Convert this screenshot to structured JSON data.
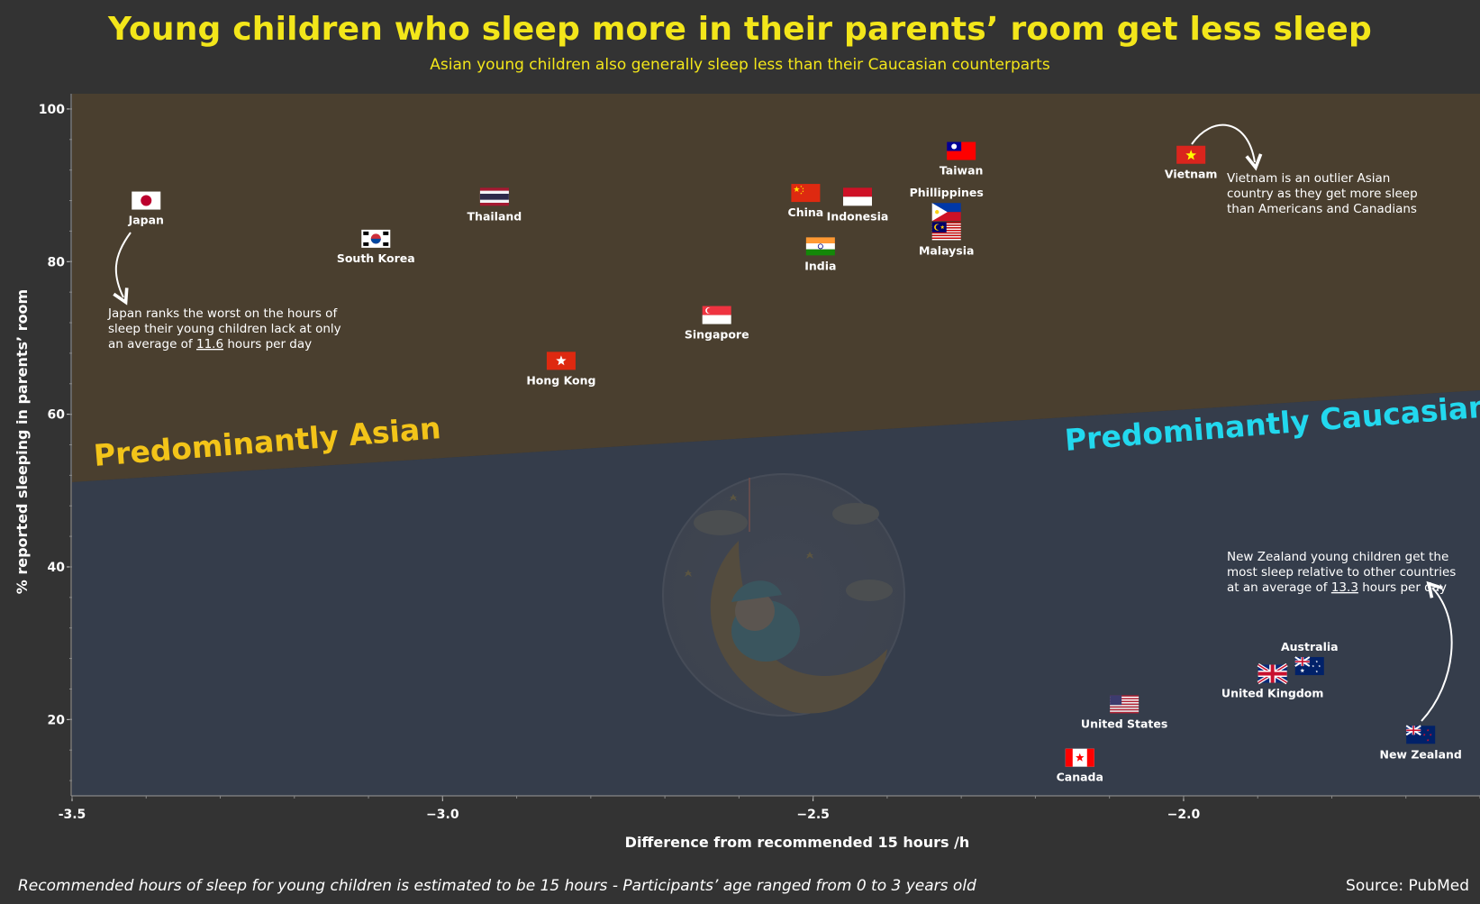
{
  "title": "Young children who sleep more in their parents’ room get less sleep",
  "subtitle": "Asian young children also generally sleep less than their Caucasian counterparts",
  "footnote": "Recommended hours of sleep for young children is estimated to be 15 hours - Participants’ age ranged from 0 to 3 years old",
  "source": "Source: PubMed",
  "colors": {
    "background": "#333333",
    "asian_region": "#4a3f2f",
    "caucasian_region": "#353d4b",
    "title": "#f3e61a",
    "asian_label": "#f3c419",
    "caucasian_label": "#22d8ee"
  },
  "regions": {
    "asian_label": "Predominantly Asian",
    "caucasian_label": "Predominantly Caucasian"
  },
  "annotations": {
    "japan": [
      "Japan ranks the worst on the hours of",
      "sleep their young children lack at only",
      "an average of ",
      "11.6",
      " hours per day"
    ],
    "vietnam": [
      "Vietnam is an outlier Asian",
      "country as they get more sleep",
      "than Americans and Canadians"
    ],
    "new_zealand": [
      "New Zealand young children get the",
      "most sleep relative to  other countries",
      "at an average of ",
      "13.3",
      " hours per day"
    ]
  },
  "chart_data": {
    "type": "scatter",
    "xlabel": "Difference from recommended 15 hours /h",
    "ylabel": "% reported sleeping in parents’ room",
    "xlim": [
      -3.5,
      -1.6
    ],
    "ylim": [
      10,
      102
    ],
    "x_ticks": [
      -3.5,
      -3.0,
      -2.5,
      -2.0
    ],
    "x_tick_labels": [
      "-3.5",
      "−3.0",
      "−2.5",
      "−2.0"
    ],
    "y_ticks": [
      20,
      40,
      60,
      80,
      100
    ],
    "grid": false,
    "points": [
      {
        "label": "Japan",
        "flag": "japan-flag-icon",
        "x": -3.4,
        "y": 88
      },
      {
        "label": "South Korea",
        "flag": "south-korea-flag-icon",
        "x": -3.09,
        "y": 83
      },
      {
        "label": "Thailand",
        "flag": "thailand-flag-icon",
        "x": -2.93,
        "y": 88.5
      },
      {
        "label": "Hong Kong",
        "flag": "hong-kong-flag-icon",
        "x": -2.84,
        "y": 67
      },
      {
        "label": "Singapore",
        "flag": "singapore-flag-icon",
        "x": -2.63,
        "y": 73
      },
      {
        "label": "China",
        "flag": "china-flag-icon",
        "x": -2.51,
        "y": 89
      },
      {
        "label": "Indonesia",
        "flag": "indonesia-flag-icon",
        "x": -2.44,
        "y": 88.5
      },
      {
        "label": "India",
        "flag": "india-flag-icon",
        "x": -2.49,
        "y": 82
      },
      {
        "label": "Phillippines",
        "flag": "philippines-flag-icon",
        "x": -2.32,
        "y": 86.5
      },
      {
        "label": "Malaysia",
        "flag": "malaysia-flag-icon",
        "x": -2.32,
        "y": 84
      },
      {
        "label": "Taiwan",
        "flag": "taiwan-flag-icon",
        "x": -2.3,
        "y": 94.5
      },
      {
        "label": "Vietnam",
        "flag": "vietnam-flag-icon",
        "x": -1.99,
        "y": 94
      },
      {
        "label": "United States",
        "flag": "us-flag-icon",
        "x": -2.08,
        "y": 22
      },
      {
        "label": "Canada",
        "flag": "canada-flag-icon",
        "x": -2.14,
        "y": 15
      },
      {
        "label": "United Kingdom",
        "flag": "uk-flag-icon",
        "x": -1.88,
        "y": 26
      },
      {
        "label": "Australia",
        "flag": "australia-flag-icon",
        "x": -1.83,
        "y": 27
      },
      {
        "label": "New Zealand",
        "flag": "new-zealand-flag-icon",
        "x": -1.68,
        "y": 18
      }
    ]
  }
}
